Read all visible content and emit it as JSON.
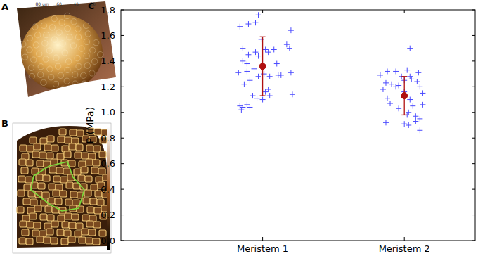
{
  "panels": {
    "labels": [
      "A",
      "B",
      "C"
    ],
    "a_axis_labels": [
      "80 um",
      "60",
      "40",
      "20"
    ]
  },
  "chart_data": {
    "type": "scatter",
    "y_label": "P (MPa)",
    "xlim": [
      0,
      2.5
    ],
    "xticks": [
      {
        "value": 1,
        "label": "Meristem 1"
      },
      {
        "value": 2,
        "label": "Meristem 2"
      }
    ],
    "ylim": [
      0,
      1.8
    ],
    "yticks": [
      {
        "value": 0,
        "label": "0.0"
      },
      {
        "value": 0.2,
        "label": "0.2"
      },
      {
        "value": 0.4,
        "label": "0.4"
      },
      {
        "value": 0.6,
        "label": "0.6"
      },
      {
        "value": 0.8,
        "label": "0.8"
      },
      {
        "value": 1.0,
        "label": "1.0"
      },
      {
        "value": 1.2,
        "label": "1.2"
      },
      {
        "value": 1.4,
        "label": "1.4"
      },
      {
        "value": 1.6,
        "label": "1.6"
      },
      {
        "value": 1.8,
        "label": "1.8"
      }
    ],
    "grid": false,
    "series": [
      {
        "color": "#4a4aff",
        "marker": "plus",
        "x": [
          0.84,
          0.97,
          0.9,
          0.95,
          1.2,
          0.99,
          1.17,
          1.19,
          0.86,
          0.95,
          1.02,
          1.08,
          0.9,
          1.04,
          0.97,
          0.86,
          0.89,
          1.1,
          0.83,
          0.89,
          0.94,
          1.01,
          1.11,
          1.13,
          1.2,
          0.91,
          0.97,
          1.05,
          0.87,
          1.04,
          1.02,
          1.21,
          1.05,
          0.93,
          0.96,
          1.0,
          0.84,
          0.86,
          0.85,
          0.91,
          0.89
        ],
        "values": [
          1.67,
          1.76,
          1.69,
          1.7,
          1.64,
          1.57,
          1.53,
          1.5,
          1.5,
          1.47,
          1.49,
          1.49,
          1.45,
          1.47,
          1.44,
          1.4,
          1.38,
          1.38,
          1.31,
          1.32,
          1.34,
          1.3,
          1.29,
          1.29,
          1.31,
          1.25,
          1.28,
          1.28,
          1.22,
          1.18,
          1.16,
          1.14,
          1.13,
          1.13,
          1.11,
          1.1,
          1.05,
          1.04,
          1.02,
          1.04,
          1.06
        ]
      },
      {
        "color": "#4a4aff",
        "marker": "plus",
        "x": [
          2.04,
          1.88,
          1.94,
          2.02,
          2.1,
          1.83,
          1.98,
          2.04,
          2.05,
          2.0,
          1.87,
          1.91,
          2.09,
          1.96,
          1.94,
          2.11,
          1.85,
          2.0,
          2.13,
          1.88,
          2.04,
          1.9,
          2.06,
          2.13,
          1.96,
          2.03,
          2.02,
          2.08,
          2.11,
          2.08,
          1.87,
          2.0,
          2.03,
          2.11
        ],
        "values": [
          1.5,
          1.32,
          1.32,
          1.33,
          1.31,
          1.29,
          1.28,
          1.28,
          1.26,
          1.25,
          1.23,
          1.22,
          1.24,
          1.21,
          1.2,
          1.2,
          1.18,
          1.16,
          1.15,
          1.11,
          1.1,
          1.07,
          1.05,
          1.06,
          1.03,
          1.0,
          0.98,
          0.97,
          0.95,
          0.93,
          0.92,
          0.91,
          0.9,
          0.86
        ]
      },
      {
        "color": "#b01010",
        "marker": "circle",
        "x": [
          1,
          2
        ],
        "values": [
          1.36,
          1.13
        ],
        "error": [
          0.23,
          0.15
        ]
      }
    ]
  }
}
